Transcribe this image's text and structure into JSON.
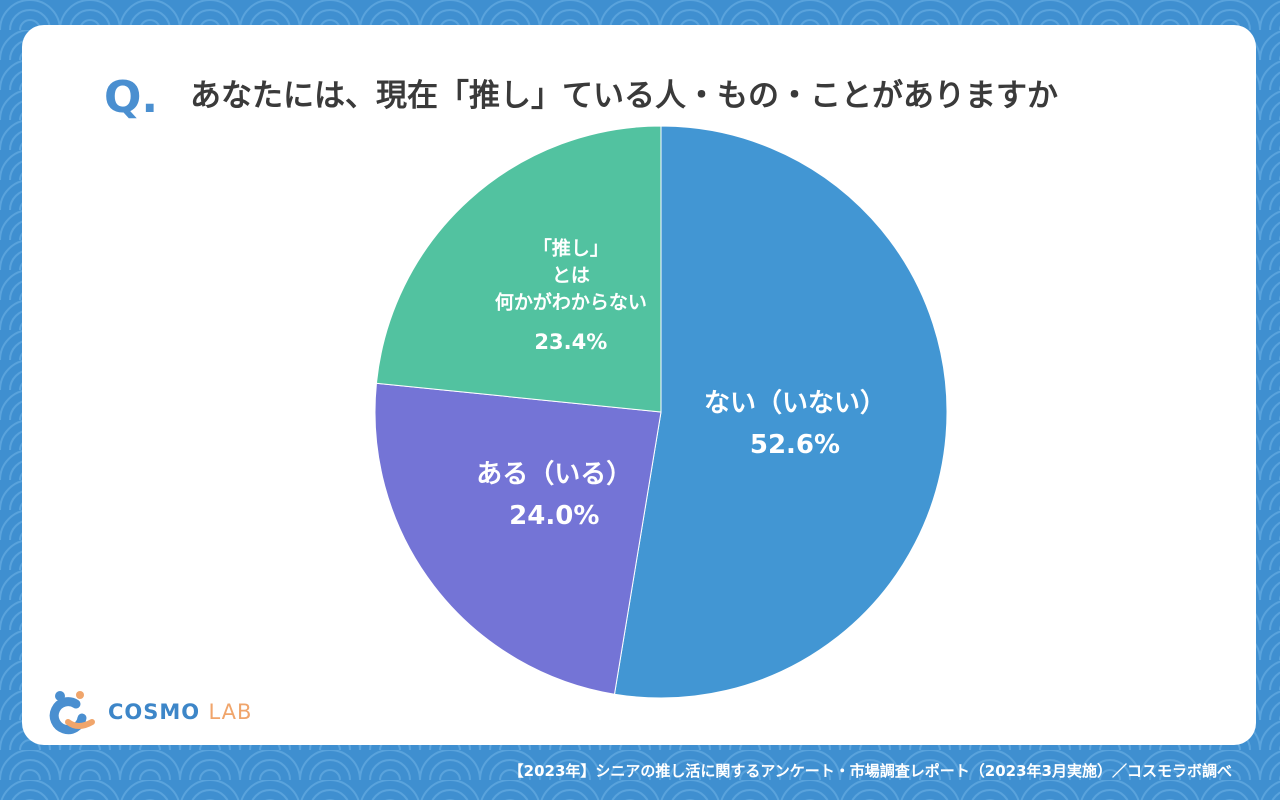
{
  "chart_data": {
    "type": "pie",
    "question_mark": "Q.",
    "title": "あなたには、現在「推し」ている人・もの・ことがありますか",
    "categories": [
      "ない（いない）",
      "ある（いる）",
      "「推し」\nとは\n何かがわからない"
    ],
    "values": [
      52.6,
      24.0,
      23.4
    ],
    "value_labels": [
      "52.6%",
      "24.0%",
      "23.4%"
    ],
    "colors": [
      "#4296d3",
      "#7474d6",
      "#52c2a0"
    ],
    "brand": [
      "COSMO",
      "LAB"
    ],
    "source": "【2023年】シニアの推し活に関するアンケート・市場調査レポート（2023年3月実施）／コスモラボ調べ"
  }
}
